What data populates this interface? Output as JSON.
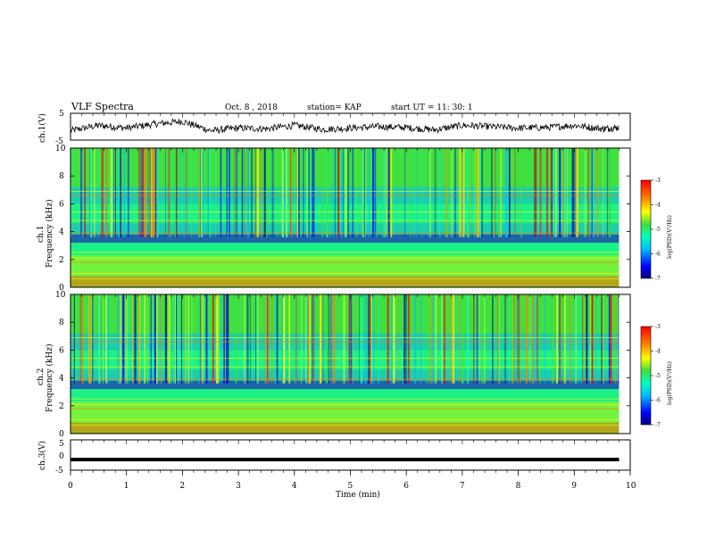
{
  "header": {
    "title": "VLF Spectra",
    "date": "Oct. 8  , 2018",
    "station": "station= KAP",
    "start": "start  UT  =   11: 30: 1"
  },
  "colors": {
    "line": "#000000",
    "spectrum_palette": [
      "#000080",
      "#0000ff",
      "#00bfff",
      "#00ffc0",
      "#40e040",
      "#a0ff40",
      "#ffff00",
      "#ff8000",
      "#ff0000"
    ]
  },
  "chart_data": [
    {
      "type": "line",
      "name": "ch1-waveform",
      "ylabel": "ch.1(V)",
      "ylim": [
        -5,
        5
      ],
      "yticks": [
        "5",
        "-5"
      ],
      "xlim": [
        0,
        10
      ],
      "description_values": {
        "x_min": [
          0,
          0.5,
          1.0,
          1.5,
          2.0,
          2.5,
          3.0,
          3.5,
          4.0,
          4.5,
          5.0,
          5.5,
          6.0,
          6.5,
          7.0,
          7.5,
          8.0,
          8.5,
          9.0,
          9.5,
          9.8
        ],
        "v_approx": [
          -1.5,
          0.5,
          -0.5,
          1.0,
          2.0,
          -1.5,
          -0.5,
          -0.8,
          0.5,
          -1.0,
          -0.5,
          0.0,
          -0.3,
          -1.2,
          0.5,
          0.0,
          -0.5,
          -0.3,
          0.5,
          -0.8,
          -0.3
        ]
      }
    },
    {
      "type": "heatmap",
      "name": "ch1-spectrogram",
      "ylabel_line1": "ch.1",
      "ylabel_line2": "Frequency  (kHz)",
      "ylim": [
        0,
        10
      ],
      "yticks": [
        "0",
        "2",
        "4",
        "6",
        "8",
        "10"
      ],
      "xlim": [
        0,
        10
      ],
      "colorbar": {
        "label": "log(PSD)(V²/Hz)",
        "ticks": [
          "-3",
          "-4",
          "-5",
          "-6",
          "-7"
        ],
        "range": [
          -7,
          -3
        ]
      }
    },
    {
      "type": "heatmap",
      "name": "ch2-spectrogram",
      "ylabel_line1": "ch.2",
      "ylabel_line2": "Frequency  (kHz)",
      "ylim": [
        0,
        10
      ],
      "yticks": [
        "0",
        "2",
        "4",
        "6",
        "8",
        "10"
      ],
      "xlim": [
        0,
        10
      ],
      "colorbar": {
        "label": "log(PSD)(V²/Hz)",
        "ticks": [
          "-3",
          "-4",
          "-5",
          "-6",
          "-7"
        ],
        "range": [
          -7,
          -3
        ]
      }
    },
    {
      "type": "line",
      "name": "ch3-waveform",
      "ylabel": "ch.3(V)",
      "ylim": [
        -5,
        5
      ],
      "yticks": [
        "5",
        "0",
        "-5"
      ],
      "xlim": [
        0,
        10
      ],
      "description_values": {
        "x_min": [
          0,
          9.8
        ],
        "v_approx": [
          -1.5,
          -1.5
        ]
      }
    }
  ],
  "xaxis": {
    "label": "Time  (min)",
    "ticks": [
      "0",
      "1",
      "2",
      "3",
      "4",
      "5",
      "6",
      "7",
      "8",
      "9",
      "10"
    ]
  }
}
